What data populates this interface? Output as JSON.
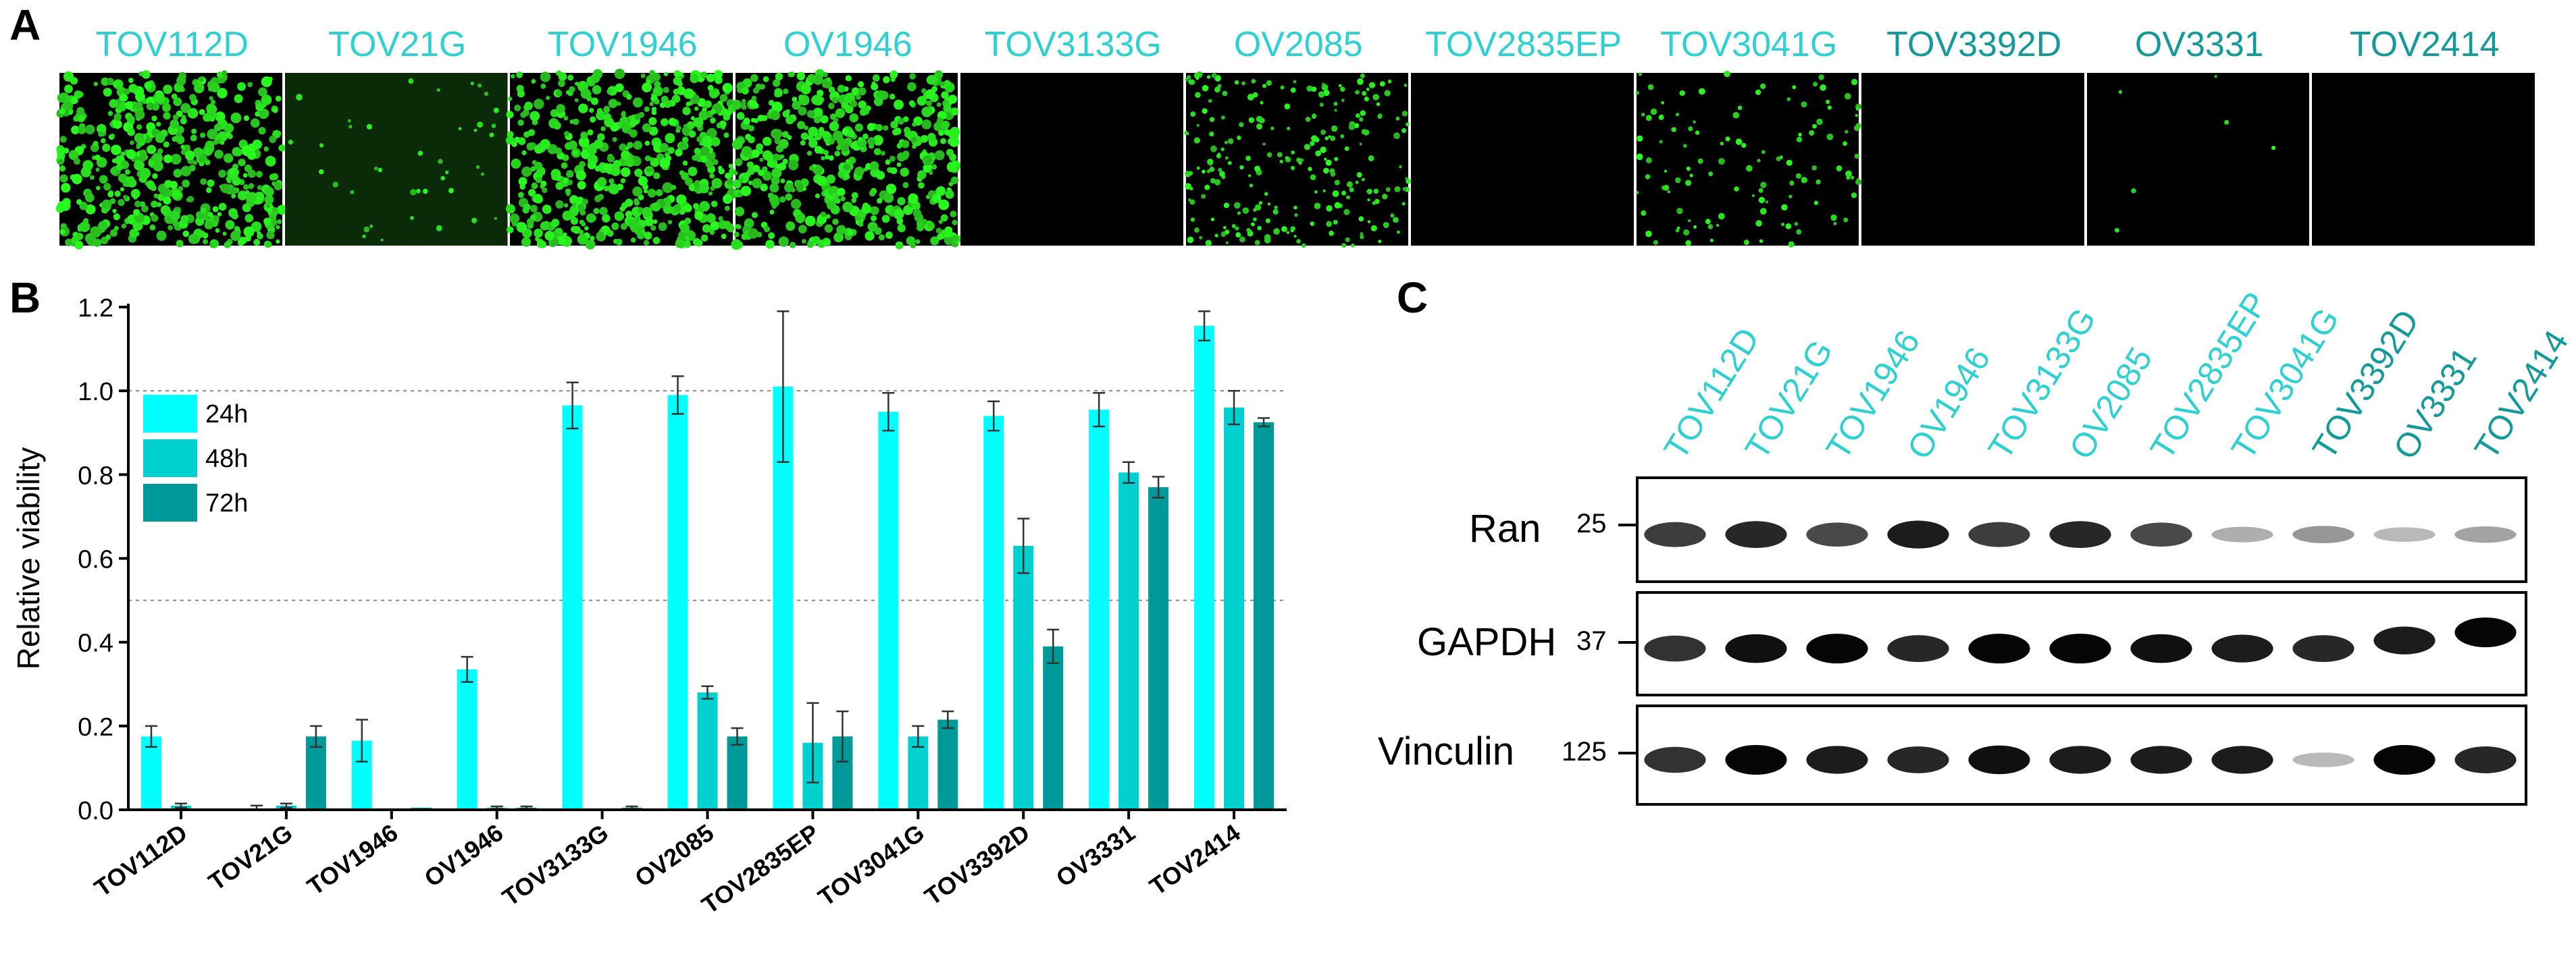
{
  "panels": {
    "a": "A",
    "b": "B",
    "c": "C"
  },
  "panel_a": {
    "cell_lines": [
      {
        "name": "TOV112D",
        "color": "#2ED1D1",
        "signal": "high"
      },
      {
        "name": "TOV21G",
        "color": "#2ED1D1",
        "signal": "faint"
      },
      {
        "name": "TOV1946",
        "color": "#2ED1D1",
        "signal": "high"
      },
      {
        "name": "OV1946",
        "color": "#2ED1D1",
        "signal": "high"
      },
      {
        "name": "TOV3133G",
        "color": "#2ED1D1",
        "signal": "none"
      },
      {
        "name": "OV2085",
        "color": "#2ED1D1",
        "signal": "medium"
      },
      {
        "name": "TOV2835EP",
        "color": "#2ED1D1",
        "signal": "none"
      },
      {
        "name": "TOV3041G",
        "color": "#2ED1D1",
        "signal": "low"
      },
      {
        "name": "TOV3392D",
        "color": "#149A9A",
        "signal": "none"
      },
      {
        "name": "OV3331",
        "color": "#149A9A",
        "signal": "trace"
      },
      {
        "name": "TOV2414",
        "color": "#149A9A",
        "signal": "none"
      }
    ]
  },
  "chart_data": {
    "type": "bar",
    "title": "",
    "xlabel": "",
    "ylabel": "Relative viability",
    "ylim": [
      0,
      1.2
    ],
    "yticks": [
      "0.0",
      "0.2",
      "0.4",
      "0.6",
      "0.8",
      "1.0",
      "1.2"
    ],
    "reference_lines": [
      1.0,
      0.5
    ],
    "categories": [
      "TOV112D",
      "TOV21G",
      "TOV1946",
      "OV1946",
      "TOV3133G",
      "OV2085",
      "TOV2835EP",
      "TOV3041G",
      "TOV3392D",
      "OV3331",
      "TOV2414"
    ],
    "series": [
      {
        "name": "24h",
        "color": "#00FFFF",
        "values": [
          0.175,
          0.0,
          0.165,
          0.335,
          0.965,
          0.99,
          1.01,
          0.95,
          0.94,
          0.955,
          1.155
        ],
        "errors": [
          0.025,
          0.01,
          0.05,
          0.03,
          0.055,
          0.045,
          0.18,
          0.045,
          0.035,
          0.04,
          0.035
        ]
      },
      {
        "name": "48h",
        "color": "#00D0D0",
        "values": [
          0.01,
          0.01,
          0.0,
          0.005,
          0.0,
          0.28,
          0.16,
          0.175,
          0.63,
          0.805,
          0.96
        ],
        "errors": [
          0.005,
          0.005,
          0.0,
          0.003,
          0.0,
          0.015,
          0.095,
          0.025,
          0.065,
          0.025,
          0.04
        ]
      },
      {
        "name": "72h",
        "color": "#009999",
        "values": [
          0.0,
          0.175,
          0.005,
          0.005,
          0.005,
          0.175,
          0.175,
          0.215,
          0.39,
          0.77,
          0.925
        ],
        "errors": [
          0.0,
          0.025,
          0.0,
          0.003,
          0.003,
          0.02,
          0.06,
          0.02,
          0.04,
          0.025,
          0.01
        ]
      }
    ],
    "legend": [
      "24h",
      "48h",
      "72h"
    ],
    "legend_position": "top-left"
  },
  "panel_c": {
    "lanes": [
      {
        "name": "TOV112D",
        "color": "#2ED1D1"
      },
      {
        "name": "TOV21G",
        "color": "#2ED1D1"
      },
      {
        "name": "TOV1946",
        "color": "#2ED1D1"
      },
      {
        "name": "OV1946",
        "color": "#2ED1D1"
      },
      {
        "name": "TOV3133G",
        "color": "#2ED1D1"
      },
      {
        "name": "OV2085",
        "color": "#2ED1D1"
      },
      {
        "name": "TOV2835EP",
        "color": "#2ED1D1"
      },
      {
        "name": "TOV3041G",
        "color": "#2ED1D1"
      },
      {
        "name": "TOV3392D",
        "color": "#149A9A"
      },
      {
        "name": "OV3331",
        "color": "#149A9A"
      },
      {
        "name": "TOV2414",
        "color": "#149A9A"
      }
    ],
    "blots": [
      {
        "protein": "Ran",
        "mw": "25",
        "intensities": [
          0.75,
          0.85,
          0.7,
          0.9,
          0.75,
          0.85,
          0.7,
          0.25,
          0.35,
          0.2,
          0.3
        ]
      },
      {
        "protein": "GAPDH",
        "mw": "37",
        "intensities": [
          0.8,
          0.95,
          1.0,
          0.85,
          1.0,
          1.0,
          0.95,
          0.9,
          0.85,
          0.9,
          1.0
        ]
      },
      {
        "protein": "Vinculin",
        "mw": "125",
        "intensities": [
          0.8,
          1.0,
          0.9,
          0.85,
          0.95,
          0.9,
          0.9,
          0.9,
          0.2,
          1.0,
          0.85
        ]
      }
    ]
  }
}
